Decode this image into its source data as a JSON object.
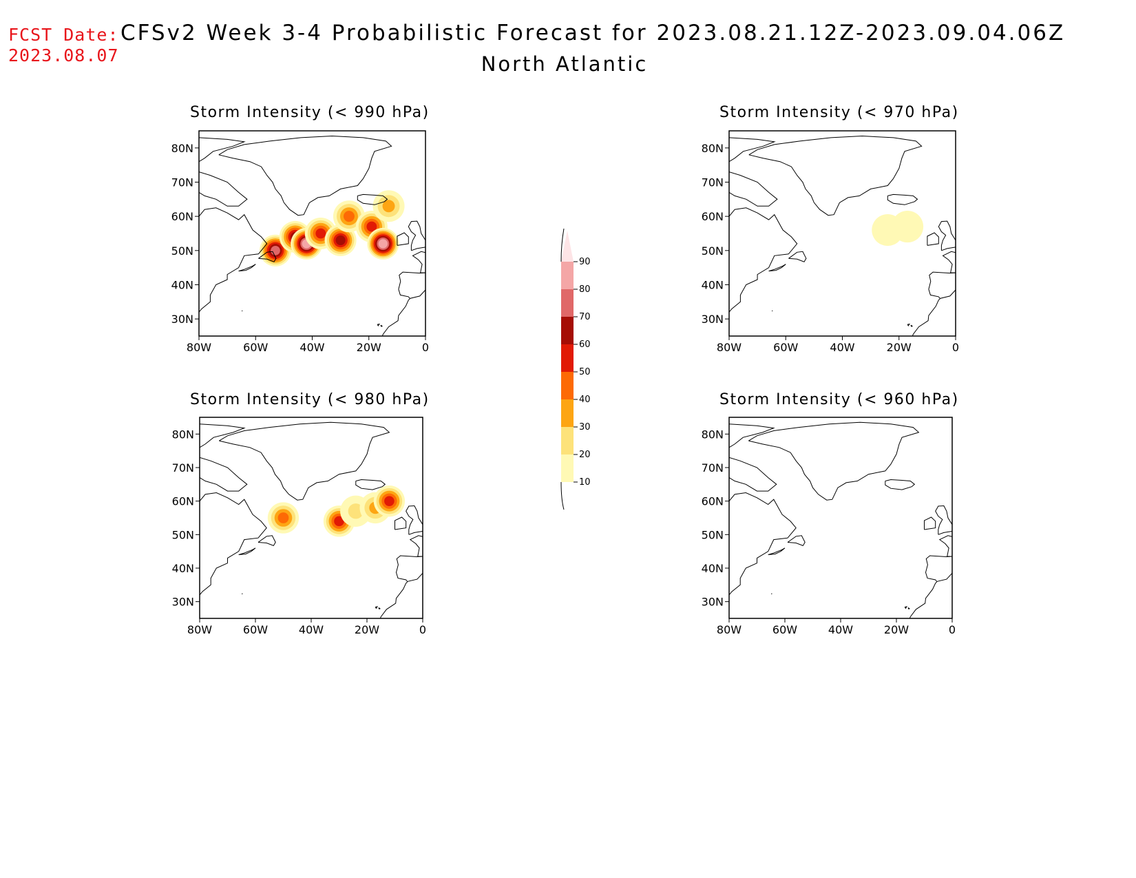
{
  "header": {
    "fcst_label": "FCST Date:",
    "fcst_date": "2023.08.07",
    "title": "CFSv2 Week 3-4 Probabilistic Forecast for 2023.08.21.12Z-2023.09.04.06Z",
    "region": "North Atlantic"
  },
  "axes": {
    "lat_ticks": [
      "80N",
      "70N",
      "60N",
      "50N",
      "40N",
      "30N"
    ],
    "lon_ticks": [
      "80W",
      "60W",
      "40W",
      "20W",
      "0"
    ]
  },
  "colorbar": {
    "levels": [
      "10",
      "20",
      "30",
      "40",
      "50",
      "60",
      "70",
      "80",
      "90"
    ],
    "colors": [
      "#fff9b5",
      "#fde27a",
      "#fda513",
      "#fd6a05",
      "#e11a05",
      "#a50d05",
      "#e06868",
      "#f4a6a6",
      "#fde4e6"
    ]
  },
  "panels": [
    {
      "id": "p990",
      "title": "Storm Intensity (< 990 hPa)",
      "blobs": [
        {
          "lon": -53,
          "lat": 50,
          "prob": 70
        },
        {
          "lon": -46,
          "lat": 54,
          "prob": 60
        },
        {
          "lon": -42,
          "lat": 52,
          "prob": 80
        },
        {
          "lon": -37,
          "lat": 55,
          "prob": 50
        },
        {
          "lon": -30,
          "lat": 53,
          "prob": 60
        },
        {
          "lon": -27,
          "lat": 60,
          "prob": 40
        },
        {
          "lon": -19,
          "lat": 57,
          "prob": 50
        },
        {
          "lon": -15,
          "lat": 52,
          "prob": 80
        },
        {
          "lon": -13,
          "lat": 63,
          "prob": 30
        }
      ]
    },
    {
      "id": "p970",
      "title": "Storm Intensity (< 970 hPa)",
      "blobs": [
        {
          "lon": -24,
          "lat": 56,
          "prob": 10
        },
        {
          "lon": -17,
          "lat": 57,
          "prob": 10
        }
      ]
    },
    {
      "id": "p980",
      "title": "Storm Intensity (< 980 hPa)",
      "blobs": [
        {
          "lon": -50,
          "lat": 55,
          "prob": 40
        },
        {
          "lon": -30,
          "lat": 54,
          "prob": 50
        },
        {
          "lon": -24,
          "lat": 57,
          "prob": 20
        },
        {
          "lon": -17,
          "lat": 58,
          "prob": 30
        },
        {
          "lon": -12,
          "lat": 60,
          "prob": 50
        }
      ]
    },
    {
      "id": "p960",
      "title": "Storm Intensity (< 960 hPa)",
      "blobs": []
    }
  ]
}
